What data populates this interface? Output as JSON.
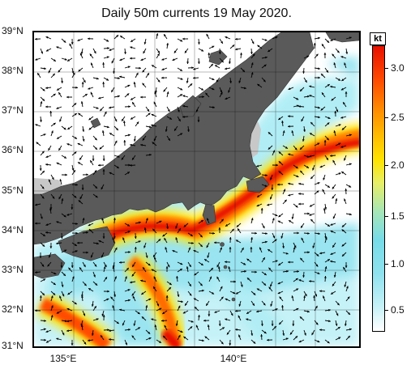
{
  "title": "Daily 50m currents 19 May 2020.",
  "unit": "kt",
  "latitude_labels": [
    "39°N",
    "38°N",
    "37°N",
    "36°N",
    "35°N",
    "34°N",
    "33°N",
    "32°N",
    "31°N"
  ],
  "longitude_labels": [
    "135°E",
    "140°E"
  ],
  "colorbar_ticks": [
    "0.5",
    "1.0",
    "1.5",
    "2.0",
    "2.5",
    "3.0"
  ],
  "colors": {
    "land": "#5a5a5a",
    "shelf": "#c8c8c8",
    "strong_current": "#e81000",
    "moderate_current": "#ffe400",
    "weak_current": "#8fe2ef",
    "arrow": "#000000"
  },
  "map_extent": {
    "lon_range": [
      134.0,
      142.0
    ],
    "lat_range": [
      31.0,
      39.0
    ]
  }
}
